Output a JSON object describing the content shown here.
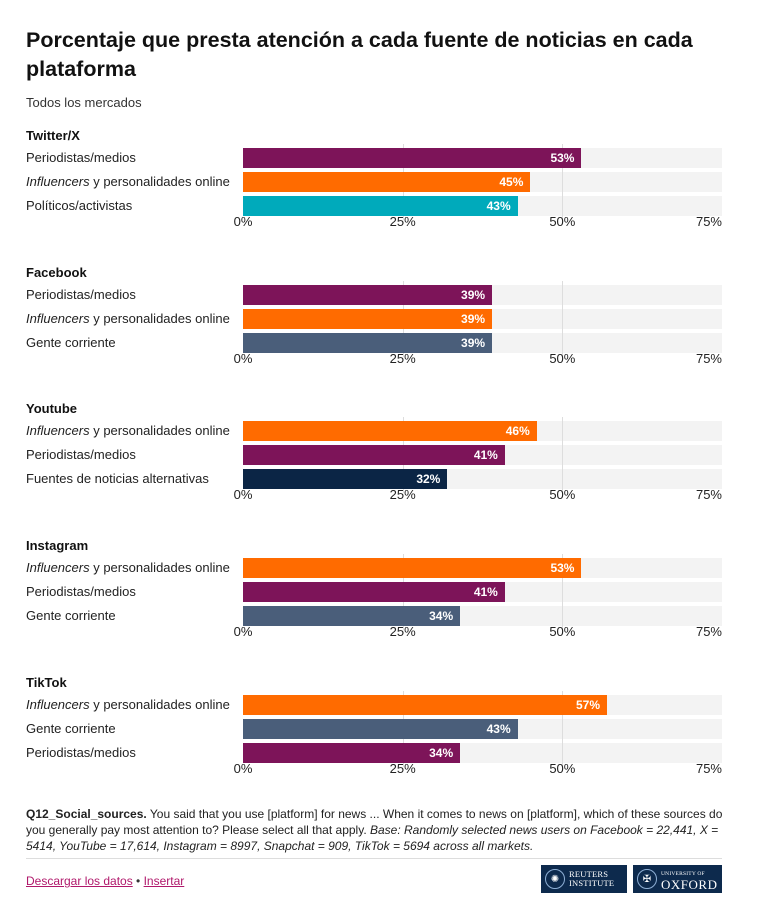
{
  "title": "Porcentaje que presta atención a cada fuente de noticias en cada plataforma",
  "subtitle": "Todos los mercados",
  "colors": {
    "periodistas": "#7d1459",
    "influencers": "#ff6b00",
    "politicos": "#00aabb",
    "gente": "#4a5e7a",
    "alternativas": "#0b2545"
  },
  "chart_data": [
    {
      "type": "bar",
      "title": "Twitter/X",
      "xlim": [
        0,
        75
      ],
      "ticks": [
        "0%",
        "25%",
        "50%",
        "75%"
      ],
      "rows": [
        {
          "label_italic": "",
          "label": "Periodistas/medios",
          "value": 53,
          "display": "53%",
          "color_key": "periodistas"
        },
        {
          "label_italic": "Influencers",
          "label": " y personalidades online",
          "value": 45,
          "display": "45%",
          "color_key": "influencers"
        },
        {
          "label_italic": "",
          "label": "Políticos/activistas",
          "value": 43,
          "display": "43%",
          "color_key": "politicos"
        }
      ]
    },
    {
      "type": "bar",
      "title": "Facebook",
      "xlim": [
        0,
        75
      ],
      "ticks": [
        "0%",
        "25%",
        "50%",
        "75%"
      ],
      "rows": [
        {
          "label_italic": "",
          "label": "Periodistas/medios",
          "value": 39,
          "display": "39%",
          "color_key": "periodistas"
        },
        {
          "label_italic": "Influencers",
          "label": " y personalidades online",
          "value": 39,
          "display": "39%",
          "color_key": "influencers"
        },
        {
          "label_italic": "",
          "label": "Gente corriente",
          "value": 39,
          "display": "39%",
          "color_key": "gente"
        }
      ]
    },
    {
      "type": "bar",
      "title": "Youtube",
      "xlim": [
        0,
        75
      ],
      "ticks": [
        "0%",
        "25%",
        "50%",
        "75%"
      ],
      "rows": [
        {
          "label_italic": "Influencers",
          "label": " y personalidades online",
          "value": 46,
          "display": "46%",
          "color_key": "influencers"
        },
        {
          "label_italic": "",
          "label": "Periodistas/medios",
          "value": 41,
          "display": "41%",
          "color_key": "periodistas"
        },
        {
          "label_italic": "",
          "label": "Fuentes de noticias alternativas",
          "value": 32,
          "display": "32%",
          "color_key": "alternativas"
        }
      ]
    },
    {
      "type": "bar",
      "title": "Instagram",
      "xlim": [
        0,
        75
      ],
      "ticks": [
        "0%",
        "25%",
        "50%",
        "75%"
      ],
      "rows": [
        {
          "label_italic": "Influencers",
          "label": " y personalidades online",
          "value": 53,
          "display": "53%",
          "color_key": "influencers"
        },
        {
          "label_italic": "",
          "label": "Periodistas/medios",
          "value": 41,
          "display": "41%",
          "color_key": "periodistas"
        },
        {
          "label_italic": "",
          "label": "Gente corriente",
          "value": 34,
          "display": "34%",
          "color_key": "gente"
        }
      ]
    },
    {
      "type": "bar",
      "title": "TikTok",
      "xlim": [
        0,
        75
      ],
      "ticks": [
        "0%",
        "25%",
        "50%",
        "75%"
      ],
      "rows": [
        {
          "label_italic": "Influencers",
          "label": " y personalidades online",
          "value": 57,
          "display": "57%",
          "color_key": "influencers"
        },
        {
          "label_italic": "",
          "label": "Gente corriente",
          "value": 43,
          "display": "43%",
          "color_key": "gente"
        },
        {
          "label_italic": "",
          "label": "Periodistas/medios",
          "value": 34,
          "display": "34%",
          "color_key": "periodistas"
        }
      ]
    }
  ],
  "footnote": {
    "code": "Q12_Social_sources.",
    "question": " You said that you use [platform] for news ... When it comes to news on [platform], which of these sources do you generally pay most attention to? Please select all that apply. ",
    "base": "Base: Randomly selected news users on Facebook = 22,441, X = 5414, YouTube = 17,614, Instagram = 8997, Snapchat = 909, TikTok = 5694 across all markets."
  },
  "links": {
    "download": "Descargar los datos",
    "separator": " • ",
    "embed": "Insertar"
  },
  "logos": {
    "reuters_line1": "REUTERS",
    "reuters_line2": "INSTITUTE",
    "oxford_line1": "UNIVERSITY OF",
    "oxford_line2": "OXFORD"
  }
}
